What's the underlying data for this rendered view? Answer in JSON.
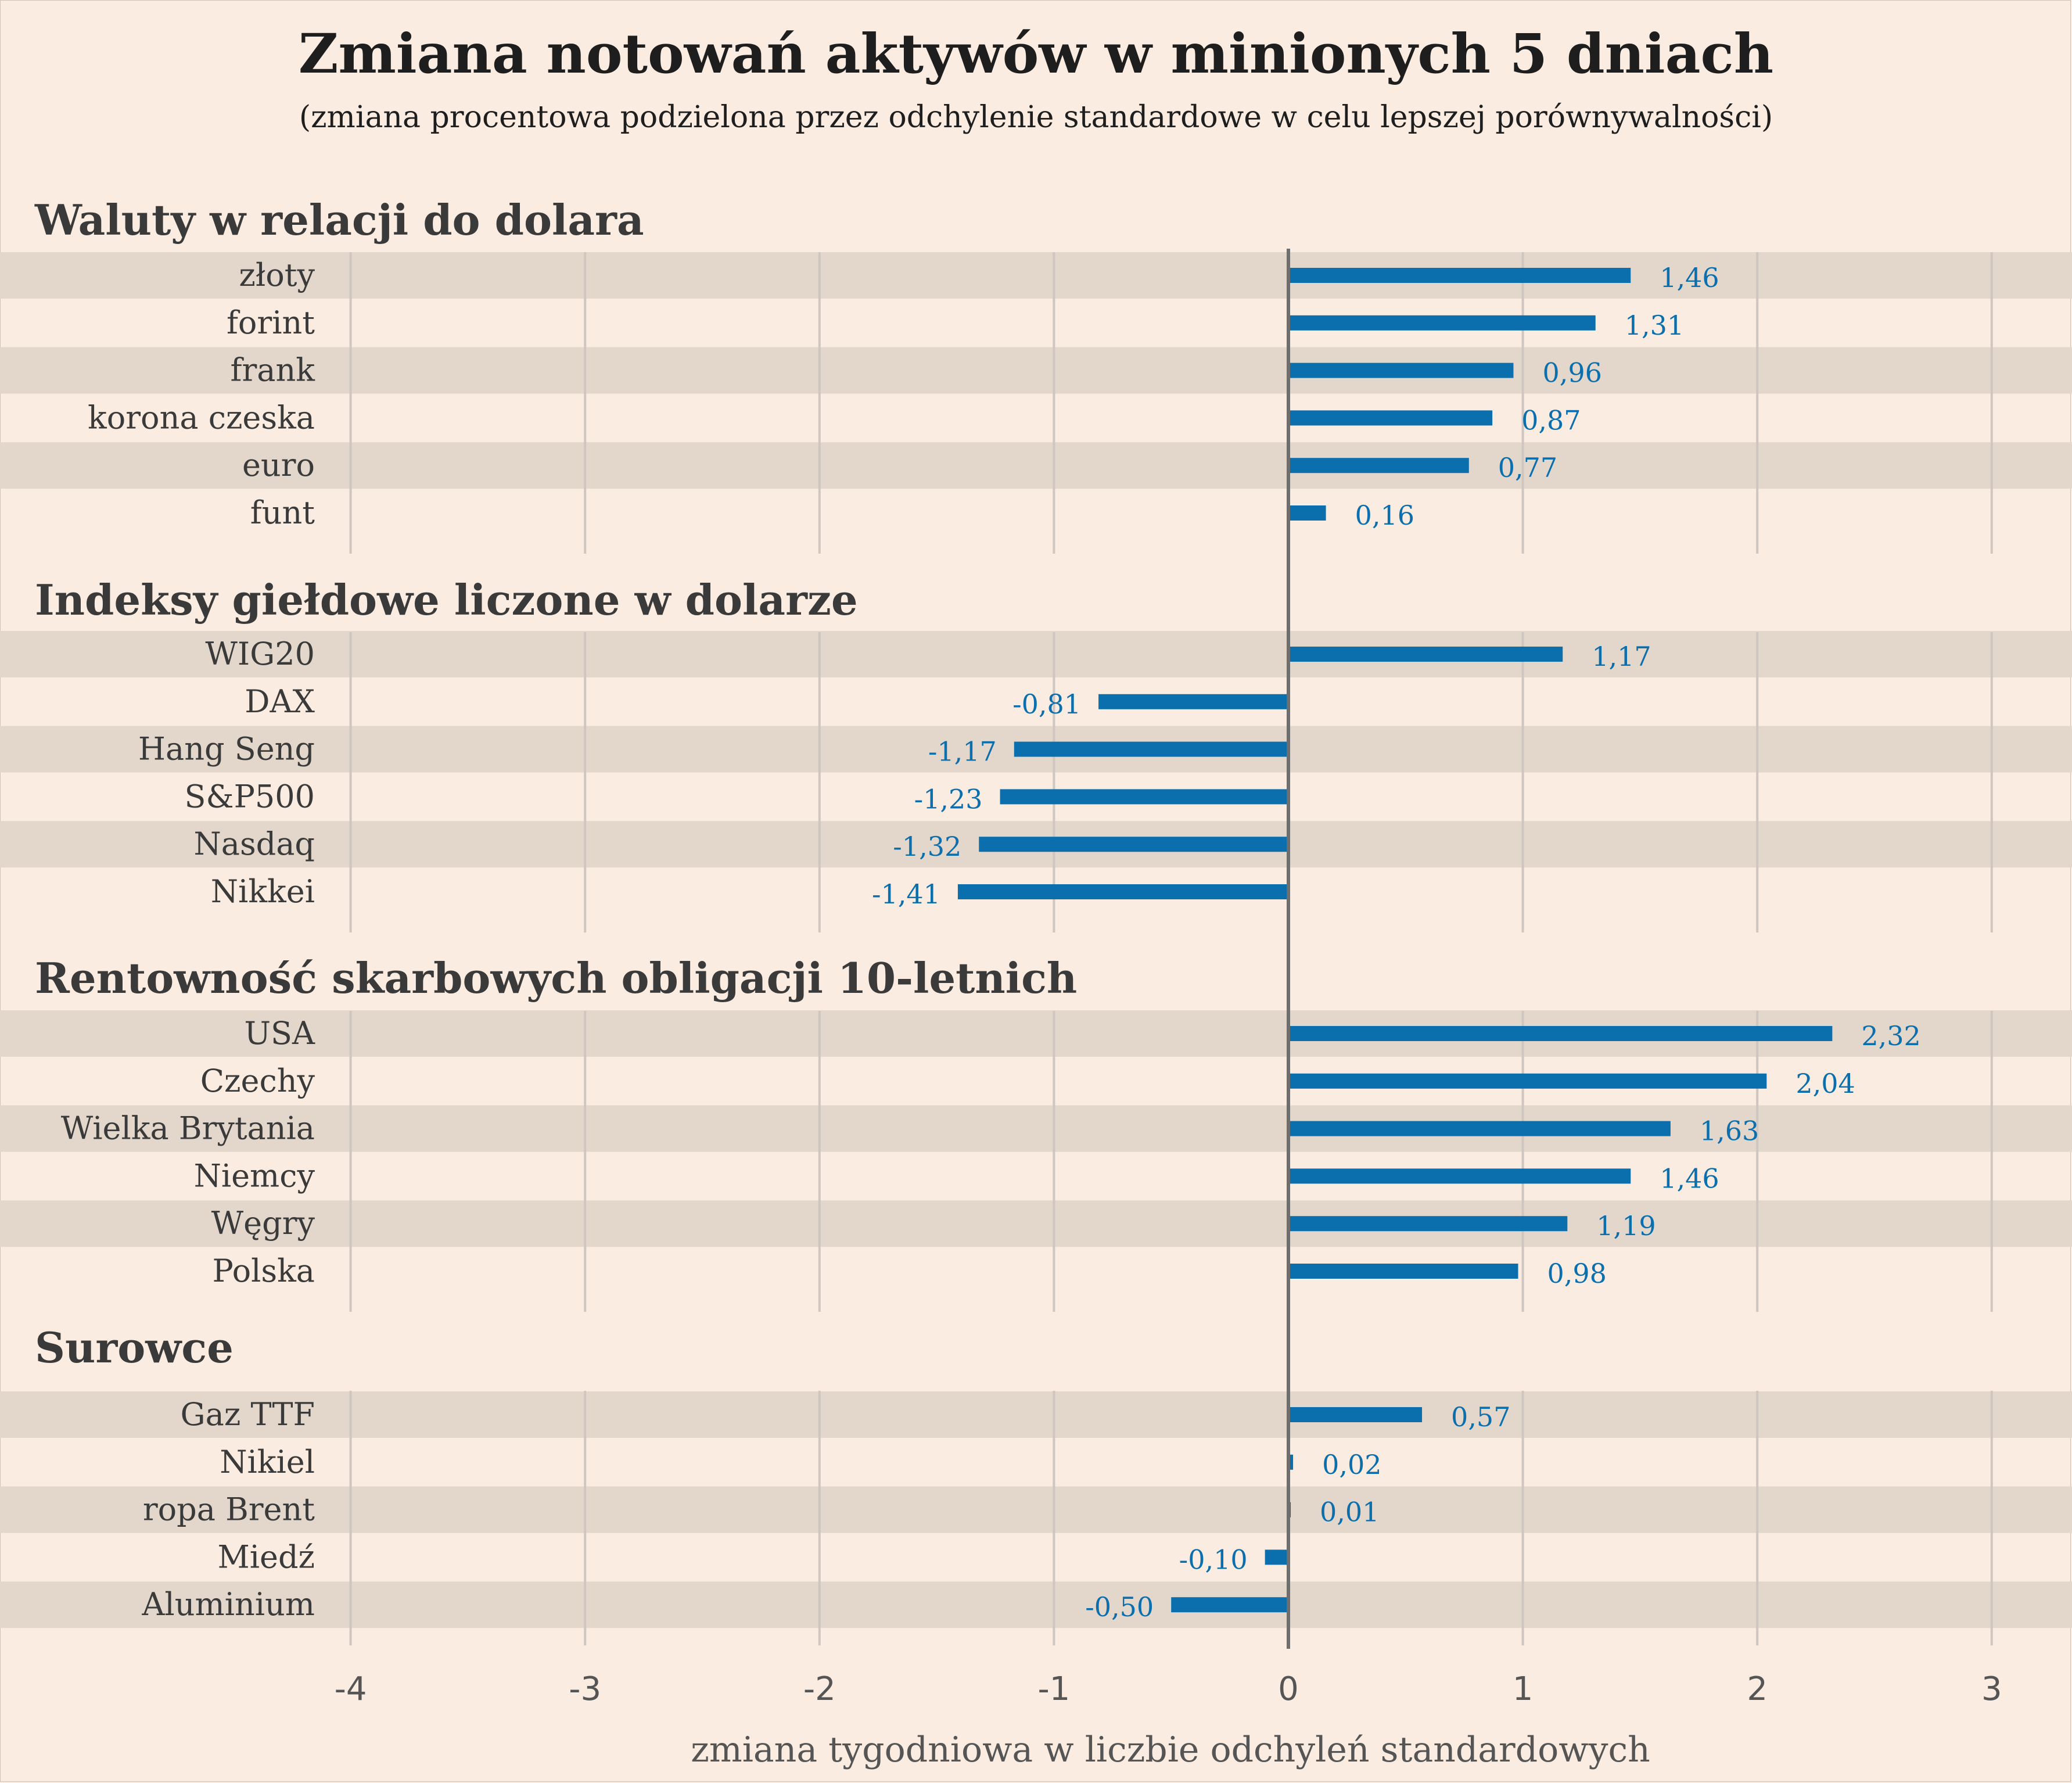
{
  "title": "Zmiana notowań aktywów w minionych 5 dniach",
  "subtitle": "(zmiana procentowa podzielona przez odchylenie standardowe w celu lepszej porównywalności)",
  "chart_data": {
    "type": "bar",
    "orientation": "horizontal",
    "xlabel": "zmiana tygodniowa w liczbie odchyleń standardowych",
    "xlim": [
      -4,
      3
    ],
    "xticks": [
      "-4",
      "-3",
      "-2",
      "-1",
      "0",
      "1",
      "2",
      "3"
    ],
    "grid": true,
    "colors": {
      "bar": "#0b6fae",
      "label": "#0b6fae",
      "band": "#e3d7cc",
      "background": "#faece0",
      "grid": "#cfc6bf",
      "zero_line": "#6e6e6e"
    },
    "groups": [
      {
        "name": "Waluty w relacji do dolara",
        "categories": [
          "złoty",
          "forint",
          "frank",
          "korona czeska",
          "euro",
          "funt"
        ],
        "values": [
          1.46,
          1.31,
          0.96,
          0.87,
          0.77,
          0.16
        ],
        "labels": [
          "1,46",
          "1,31",
          "0,96",
          "0,87",
          "0,77",
          "0,16"
        ]
      },
      {
        "name": "Indeksy giełdowe liczone w dolarze",
        "categories": [
          "WIG20",
          "DAX",
          "Hang Seng",
          "S&P500",
          "Nasdaq",
          "Nikkei"
        ],
        "values": [
          1.17,
          -0.81,
          -1.17,
          -1.23,
          -1.32,
          -1.41
        ],
        "labels": [
          "1,17",
          "-0,81",
          "-1,17",
          "-1,23",
          "-1,32",
          "-1,41"
        ]
      },
      {
        "name": "Rentowność skarbowych obligacji 10-letnich",
        "categories": [
          "USA",
          "Czechy",
          "Wielka Brytania",
          "Niemcy",
          "Węgry",
          "Polska"
        ],
        "values": [
          2.32,
          2.04,
          1.63,
          1.46,
          1.19,
          0.98
        ],
        "labels": [
          "2,32",
          "2,04",
          "1,63",
          "1,46",
          "1,19",
          "0,98"
        ]
      },
      {
        "name": "Surowce",
        "categories": [
          "Gaz TTF",
          "Nikiel",
          "ropa Brent",
          "Miedź",
          "Aluminium"
        ],
        "values": [
          0.57,
          0.02,
          0.01,
          -0.1,
          -0.5
        ],
        "labels": [
          "0,57",
          "0,02",
          "0,01",
          "-0,10",
          "-0,50"
        ]
      }
    ]
  }
}
